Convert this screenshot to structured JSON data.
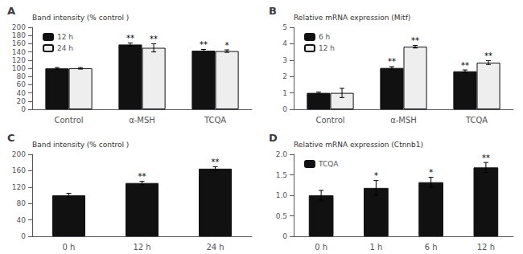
{
  "chart_data": [
    {
      "type": "bar",
      "title": "A",
      "categories": [
        "Control",
        "α-MSH",
        "TCQA"
      ],
      "series": [
        {
          "name": "12 h",
          "color": "#111111",
          "values": [
            100,
            158,
            143
          ],
          "errors": [
            2,
            4,
            3
          ],
          "significance": [
            null,
            "**",
            "**"
          ]
        },
        {
          "name": "24 h",
          "color": "#eeeeee",
          "values": [
            100,
            150,
            142
          ],
          "errors": [
            2,
            10,
            3
          ],
          "significance": [
            null,
            "**",
            "*"
          ]
        }
      ],
      "ylabel": "Band intensity (% control )",
      "ylim": [
        0,
        200
      ],
      "yticks": [
        0,
        20,
        40,
        60,
        80,
        100,
        120,
        140,
        160,
        180,
        200
      ],
      "legend": "upper left",
      "grid": false
    },
    {
      "type": "bar",
      "title": "B",
      "categories": [
        "Control",
        "α-MSH",
        "TCQA"
      ],
      "series": [
        {
          "name": "6 h",
          "color": "#111111",
          "values": [
            1.0,
            2.52,
            2.32
          ],
          "errors": [
            0.06,
            0.08,
            0.08
          ],
          "significance": [
            null,
            "**",
            "**"
          ]
        },
        {
          "name": "12 h",
          "color": "#eeeeee",
          "values": [
            1.0,
            3.82,
            2.85
          ],
          "errors": [
            0.28,
            0.08,
            0.12
          ],
          "significance": [
            null,
            "**",
            "**"
          ]
        }
      ],
      "ylabel": "Relative mRNA expression (Mitf)",
      "ylim": [
        0,
        5
      ],
      "yticks": [
        0,
        1,
        2,
        3,
        4,
        5
      ],
      "legend": "upper left",
      "grid": false
    },
    {
      "type": "bar",
      "title": "C",
      "categories": [
        "0 h",
        "12 h",
        "24 h"
      ],
      "series": [
        {
          "color": "#111111",
          "values": [
            100,
            130,
            165
          ],
          "errors": [
            5,
            4,
            5
          ],
          "significance": [
            null,
            "**",
            "**"
          ]
        }
      ],
      "ylabel": "Band intensity (% control )",
      "ylim": [
        0,
        200
      ],
      "yticks": [
        0,
        40,
        80,
        120,
        160,
        200
      ],
      "grid": false
    },
    {
      "type": "bar",
      "title": "D",
      "categories": [
        "0 h",
        "1 h",
        "6 h",
        "12 h"
      ],
      "series": [
        {
          "name": "TCQA",
          "color": "#111111",
          "values": [
            1.0,
            1.18,
            1.32,
            1.68
          ],
          "errors": [
            0.12,
            0.18,
            0.12,
            0.12
          ],
          "significance": [
            null,
            "*",
            "*",
            "**"
          ]
        }
      ],
      "ylabel": "Relative mRNA expression (Ctnnb1)",
      "ylim": [
        0,
        2
      ],
      "yticks": [
        0,
        0.5,
        {
          "value": 1.0,
          "label": "1.0"
        },
        1.5,
        {
          "value": 2.0,
          "label": "2.0"
        }
      ],
      "legend": "upper left",
      "grid": false
    }
  ]
}
